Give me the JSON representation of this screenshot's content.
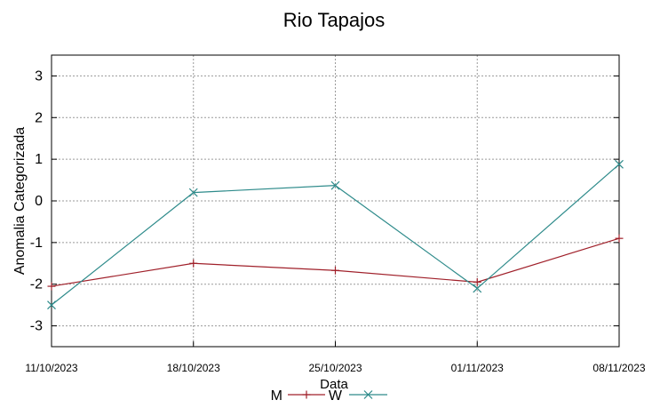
{
  "chart_data": {
    "type": "line",
    "title": "Rio Tapajos",
    "xlabel": "Data",
    "ylabel": "Anomalia Categorizada",
    "categories": [
      "11/10/2023",
      "18/10/2023",
      "25/10/2023",
      "01/11/2023",
      "08/11/2023"
    ],
    "y_ticks": [
      "3",
      "2",
      "1",
      "0",
      "-1",
      "-2",
      "-3"
    ],
    "ylim": [
      -3.5,
      3.5
    ],
    "grid": true,
    "legend_position": "bottom-center",
    "series": [
      {
        "name": "M",
        "color": "#a0202a",
        "marker": "plus",
        "values": [
          -2.05,
          -1.5,
          -1.67,
          -1.95,
          -0.9
        ]
      },
      {
        "name": "W",
        "color": "#2e8b8b",
        "marker": "cross",
        "values": [
          -2.5,
          0.2,
          0.37,
          -2.1,
          0.88
        ]
      }
    ]
  }
}
